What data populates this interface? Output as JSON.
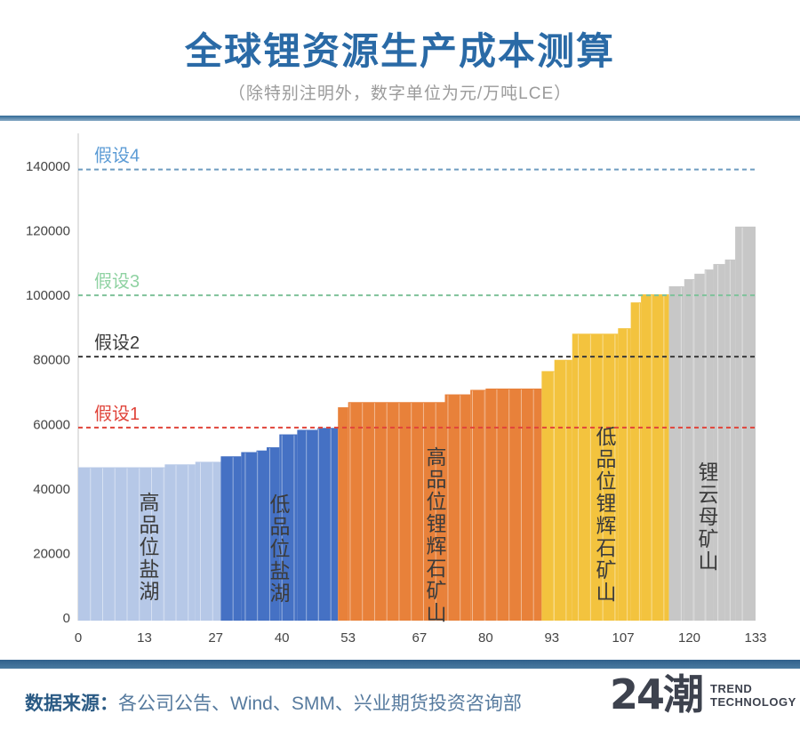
{
  "header": {
    "title": "全球锂资源生产成本测算",
    "subtitle": "（除特别注明外，数字单位为元/万吨LCE）"
  },
  "footer": {
    "source_label": "数据来源：",
    "source_text": "各公司公告、Wind、SMM、兴业期货投资咨询部",
    "logo_text": "24潮",
    "logo_sub1": "TREND",
    "logo_sub2": "TECHNOLOGY"
  },
  "chart_data": {
    "type": "bar",
    "subtype": "cost-curve-step-chart",
    "title": "全球锂资源生产成本测算",
    "xlabel": "",
    "ylabel": "",
    "xlim": [
      0,
      133
    ],
    "ylim": [
      0,
      140000
    ],
    "x_ticks": [
      0,
      13,
      27,
      40,
      53,
      67,
      80,
      93,
      107,
      120,
      133
    ],
    "y_ticks": [
      0,
      20000,
      40000,
      60000,
      80000,
      100000,
      120000,
      140000
    ],
    "grid": false,
    "axis_color": "#d9d9d9",
    "tick_label_color": "#444444",
    "bar_separator_color": "rgba(255,255,255,0.45)",
    "segments": [
      {
        "name": "高品位盐湖",
        "color": "#b6c8e7",
        "steps": [
          {
            "from": 0,
            "to": 17,
            "value": 46700
          },
          {
            "from": 17,
            "to": 23,
            "value": 47600
          },
          {
            "from": 23,
            "to": 28,
            "value": 48400
          }
        ]
      },
      {
        "name": "低品位盐湖",
        "color": "#4571c4",
        "steps": [
          {
            "from": 28,
            "to": 32,
            "value": 50100
          },
          {
            "from": 32,
            "to": 35,
            "value": 51400
          },
          {
            "from": 35,
            "to": 37,
            "value": 51900
          },
          {
            "from": 37,
            "to": 39.5,
            "value": 52900
          },
          {
            "from": 39.5,
            "to": 43,
            "value": 56900
          },
          {
            "from": 43,
            "to": 47,
            "value": 58300
          },
          {
            "from": 47,
            "to": 51,
            "value": 58900
          }
        ]
      },
      {
        "name": "高品位锂辉石矿山",
        "color": "#e8813a",
        "steps": [
          {
            "from": 51,
            "to": 53,
            "value": 65300
          },
          {
            "from": 53,
            "to": 72,
            "value": 66900
          },
          {
            "from": 72,
            "to": 77,
            "value": 69300
          },
          {
            "from": 77,
            "to": 80,
            "value": 70700
          },
          {
            "from": 80,
            "to": 91,
            "value": 71100
          }
        ]
      },
      {
        "name": "低品位锂辉石矿山",
        "color": "#f3c33e",
        "steps": [
          {
            "from": 91,
            "to": 93.5,
            "value": 76500
          },
          {
            "from": 93.5,
            "to": 97,
            "value": 80000
          },
          {
            "from": 97,
            "to": 106,
            "value": 88100
          },
          {
            "from": 106,
            "to": 108.5,
            "value": 89800
          },
          {
            "from": 108.5,
            "to": 110.5,
            "value": 97800
          },
          {
            "from": 110.5,
            "to": 116,
            "value": 100300
          }
        ]
      },
      {
        "name": "锂云母矿山",
        "color": "#c7c7c7",
        "steps": [
          {
            "from": 116,
            "to": 119,
            "value": 102800
          },
          {
            "from": 119,
            "to": 121,
            "value": 105000
          },
          {
            "from": 121,
            "to": 123,
            "value": 106700
          },
          {
            "from": 123,
            "to": 124.7,
            "value": 108000
          },
          {
            "from": 124.7,
            "to": 127,
            "value": 109700
          },
          {
            "from": 127,
            "to": 129,
            "value": 111100
          },
          {
            "from": 129,
            "to": 133,
            "value": 121300
          }
        ]
      }
    ],
    "hypothesis_lines": [
      {
        "label": "假设1",
        "value": 59000,
        "label_color": "#e0443a",
        "line_color": "#e0443a"
      },
      {
        "label": "假设2",
        "value": 81000,
        "label_color": "#3a3a3a",
        "line_color": "#3a3a3a"
      },
      {
        "label": "假设3",
        "value": 100000,
        "label_color": "#8fd2a2",
        "line_color": "#7ec29a"
      },
      {
        "label": "假设4",
        "value": 139000,
        "label_color": "#5b9bd5",
        "line_color": "#6e9cc0"
      }
    ],
    "legend_position": "none"
  }
}
